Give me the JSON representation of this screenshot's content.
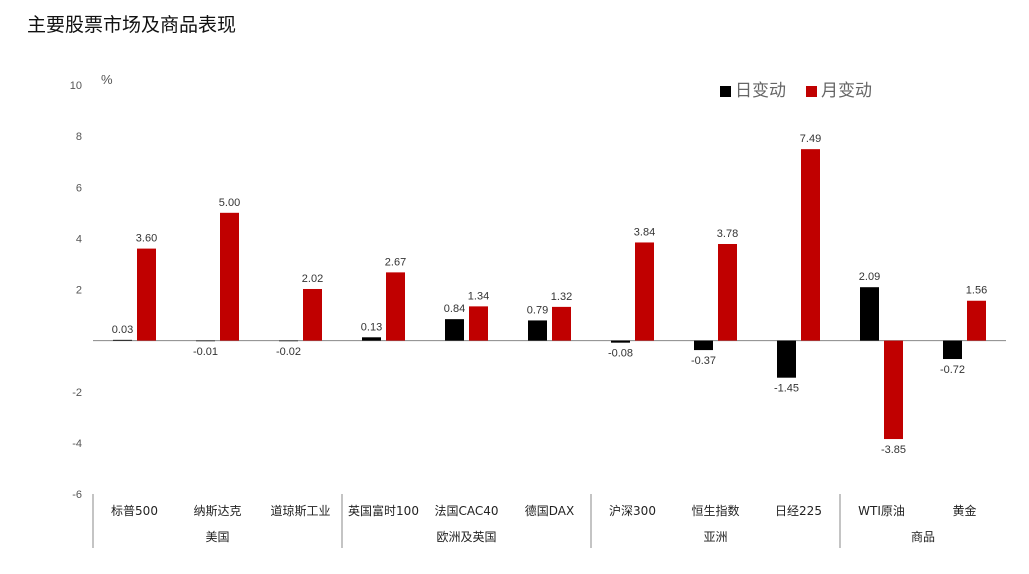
{
  "title": "主要股票市场及商品表现",
  "chart_data": {
    "type": "bar",
    "unit": "%",
    "ylim": [
      -6,
      10
    ],
    "yticks": [
      -6,
      -4,
      -2,
      0,
      2,
      4,
      6,
      8,
      10
    ],
    "ytick_labels": [
      "-6",
      "-4",
      "-2",
      "",
      "2",
      "4",
      "6",
      "8",
      "10"
    ],
    "categories": [
      "标普500",
      "纳斯达克",
      "道琼斯工业",
      "英国富时100",
      "法国CAC40",
      "德国DAX",
      "沪深300",
      "恒生指数",
      "日经225",
      "WTI原油",
      "黄金"
    ],
    "groups": [
      {
        "name": "美国",
        "count": 3
      },
      {
        "name": "欧洲及英国",
        "count": 3
      },
      {
        "name": "亚洲",
        "count": 3
      },
      {
        "name": "商品",
        "count": 2
      }
    ],
    "series": [
      {
        "name": "日变动",
        "color": "#000000",
        "values": [
          0.03,
          -0.01,
          -0.02,
          0.13,
          0.84,
          0.79,
          -0.08,
          -0.37,
          -1.45,
          2.09,
          -0.72
        ],
        "labels": [
          "0.03",
          "-0.01",
          "-0.02",
          "0.13",
          "0.84",
          "0.79",
          "-0.08",
          "-0.37",
          "-1.45",
          "2.09",
          "-0.72"
        ]
      },
      {
        "name": "月变动",
        "color": "#C00000",
        "values": [
          3.6,
          5.0,
          2.02,
          2.67,
          1.34,
          1.32,
          3.84,
          3.78,
          7.49,
          -3.85,
          1.56
        ],
        "labels": [
          "3.60",
          "5.00",
          "2.02",
          "2.67",
          "1.34",
          "1.32",
          "3.84",
          "3.78",
          "7.49",
          "-3.85",
          "1.56"
        ]
      }
    ],
    "legend_position": "top-right",
    "grid": false
  }
}
